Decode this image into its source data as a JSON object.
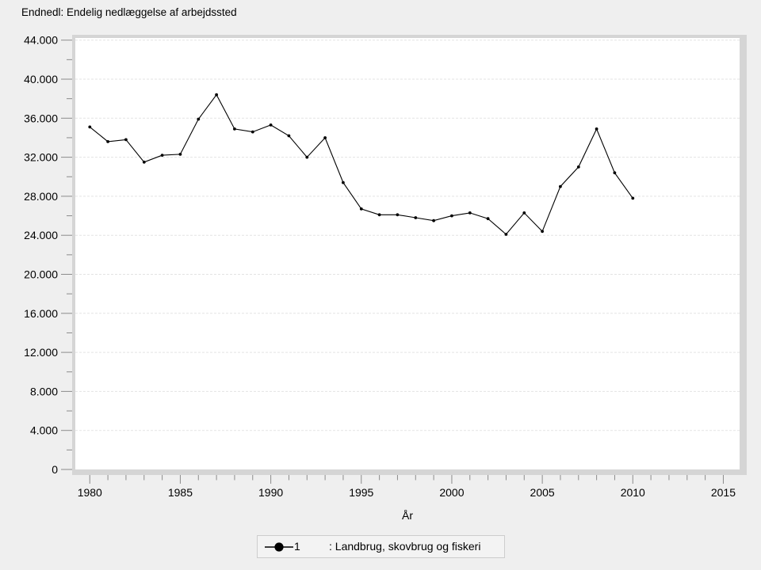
{
  "page": {
    "background": "#efefef"
  },
  "title": "Endnedl: Endelig nedlæggelse af arbejdssted",
  "x_axis_label": "År",
  "legend": {
    "series_number": "1",
    "label": ": Landbrug, skovbrug og fiskeri"
  },
  "chart_data": {
    "type": "line",
    "title": "Endnedl: Endelig nedlæggelse af arbejdssted",
    "xlabel": "År",
    "ylabel": "",
    "xlim": [
      1979.2,
      2015.9
    ],
    "ylim": [
      0,
      44000
    ],
    "grid": "horizontal-dashed",
    "legend_position": "bottom-center",
    "series": [
      {
        "name": "1 : Landbrug, skovbrug og fiskeri",
        "x": [
          1980,
          1981,
          1982,
          1983,
          1984,
          1985,
          1986,
          1987,
          1988,
          1989,
          1990,
          1991,
          1992,
          1993,
          1994,
          1995,
          1996,
          1997,
          1998,
          1999,
          2000,
          2001,
          2002,
          2003,
          2004,
          2005,
          2006,
          2007,
          2008,
          2009,
          2010
        ],
        "values": [
          35100,
          33600,
          33800,
          31500,
          32200,
          32300,
          35900,
          38400,
          34900,
          34600,
          35300,
          34200,
          32000,
          34000,
          29400,
          26700,
          26100,
          26100,
          25800,
          25500,
          26000,
          26300,
          25700,
          24100,
          26300,
          24400,
          29000,
          31000,
          34900,
          30400,
          27800
        ]
      }
    ],
    "x_ticks_major": [
      {
        "year": 1980,
        "label": "1980"
      },
      {
        "year": 1985,
        "label": "1985"
      },
      {
        "year": 1990,
        "label": "1990"
      },
      {
        "year": 1995,
        "label": "1995"
      },
      {
        "year": 2000,
        "label": "2000"
      },
      {
        "year": 2005,
        "label": "2005"
      },
      {
        "year": 2010,
        "label": "2010"
      },
      {
        "year": 2015,
        "label": "2015"
      }
    ],
    "x_ticks_minor_years": [
      1981,
      1982,
      1983,
      1984,
      1986,
      1987,
      1988,
      1989,
      1991,
      1992,
      1993,
      1994,
      1996,
      1997,
      1998,
      1999,
      2001,
      2002,
      2003,
      2004,
      2006,
      2007,
      2008,
      2009,
      2011,
      2012,
      2013,
      2014
    ],
    "y_ticks_major": [
      {
        "value": 0,
        "label": "0"
      },
      {
        "value": 4000,
        "label": "4.000"
      },
      {
        "value": 8000,
        "label": "8.000"
      },
      {
        "value": 12000,
        "label": "12.000"
      },
      {
        "value": 16000,
        "label": "16.000"
      },
      {
        "value": 20000,
        "label": "20.000"
      },
      {
        "value": 24000,
        "label": "24.000"
      },
      {
        "value": 28000,
        "label": "28.000"
      },
      {
        "value": 32000,
        "label": "32.000"
      },
      {
        "value": 36000,
        "label": "36.000"
      },
      {
        "value": 40000,
        "label": "40.000"
      },
      {
        "value": 44000,
        "label": "44.000"
      }
    ],
    "y_ticks_minor_values": [
      2000,
      6000,
      10000,
      14000,
      18000,
      22000,
      26000,
      30000,
      34000,
      38000,
      42000
    ],
    "colors": {
      "background": "#efefef",
      "plot_background": "#ffffff",
      "frame": "#d5d5d5",
      "gridline": "#e3e3e3",
      "tick": "#8b8b8b",
      "line": "#000000",
      "marker": "#000000",
      "text": "#000000"
    }
  }
}
